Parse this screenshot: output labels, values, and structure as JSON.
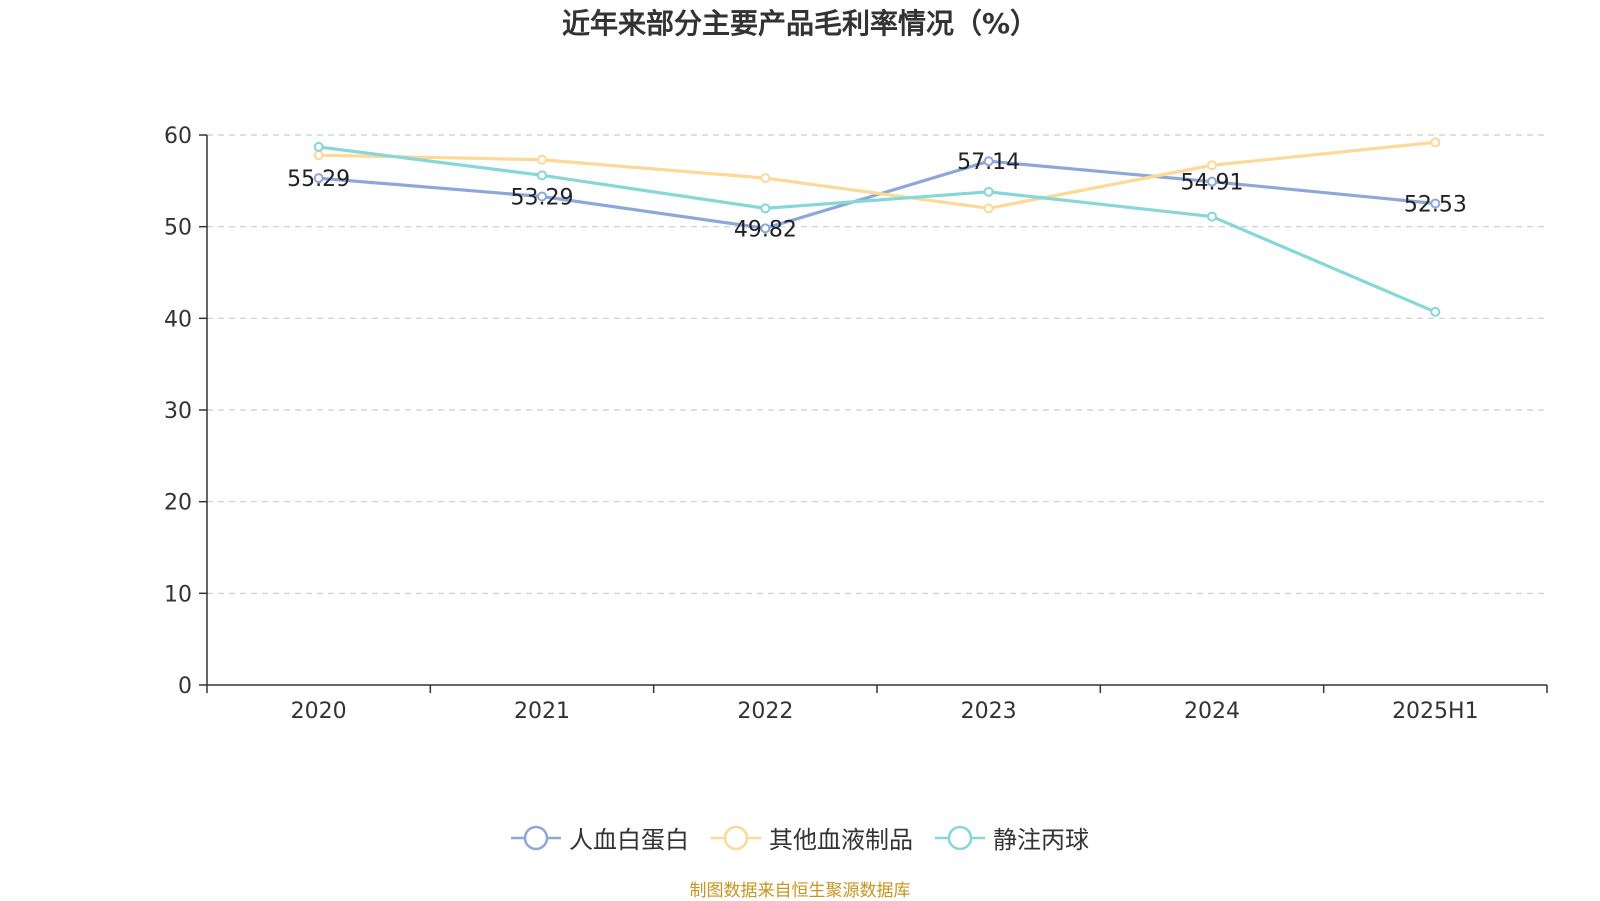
{
  "chart_data": {
    "type": "line",
    "title": "近年来部分主要产品毛利率情况（%）",
    "categories": [
      "2020",
      "2021",
      "2022",
      "2023",
      "2024",
      "2025H1"
    ],
    "ylim": [
      0,
      60
    ],
    "yticks": [
      0,
      10,
      20,
      30,
      40,
      50,
      60
    ],
    "grid": true,
    "legend_position": "bottom",
    "series": [
      {
        "name": "人血白蛋白",
        "color": "#8da8d8",
        "values": [
          55.29,
          53.29,
          49.82,
          57.14,
          54.91,
          52.53
        ],
        "labels": [
          "55.29",
          "53.29",
          "49.82",
          "57.14",
          "54.91",
          "52.53"
        ]
      },
      {
        "name": "其他血液制品",
        "color": "#fcd997",
        "values": [
          57.8,
          57.3,
          55.3,
          52.0,
          56.7,
          59.2
        ]
      },
      {
        "name": "静注丙球",
        "color": "#85d7d8",
        "values": [
          58.7,
          55.6,
          52.0,
          53.8,
          51.1,
          40.7
        ]
      }
    ]
  },
  "source": "制图数据来自恒生聚源数据库"
}
